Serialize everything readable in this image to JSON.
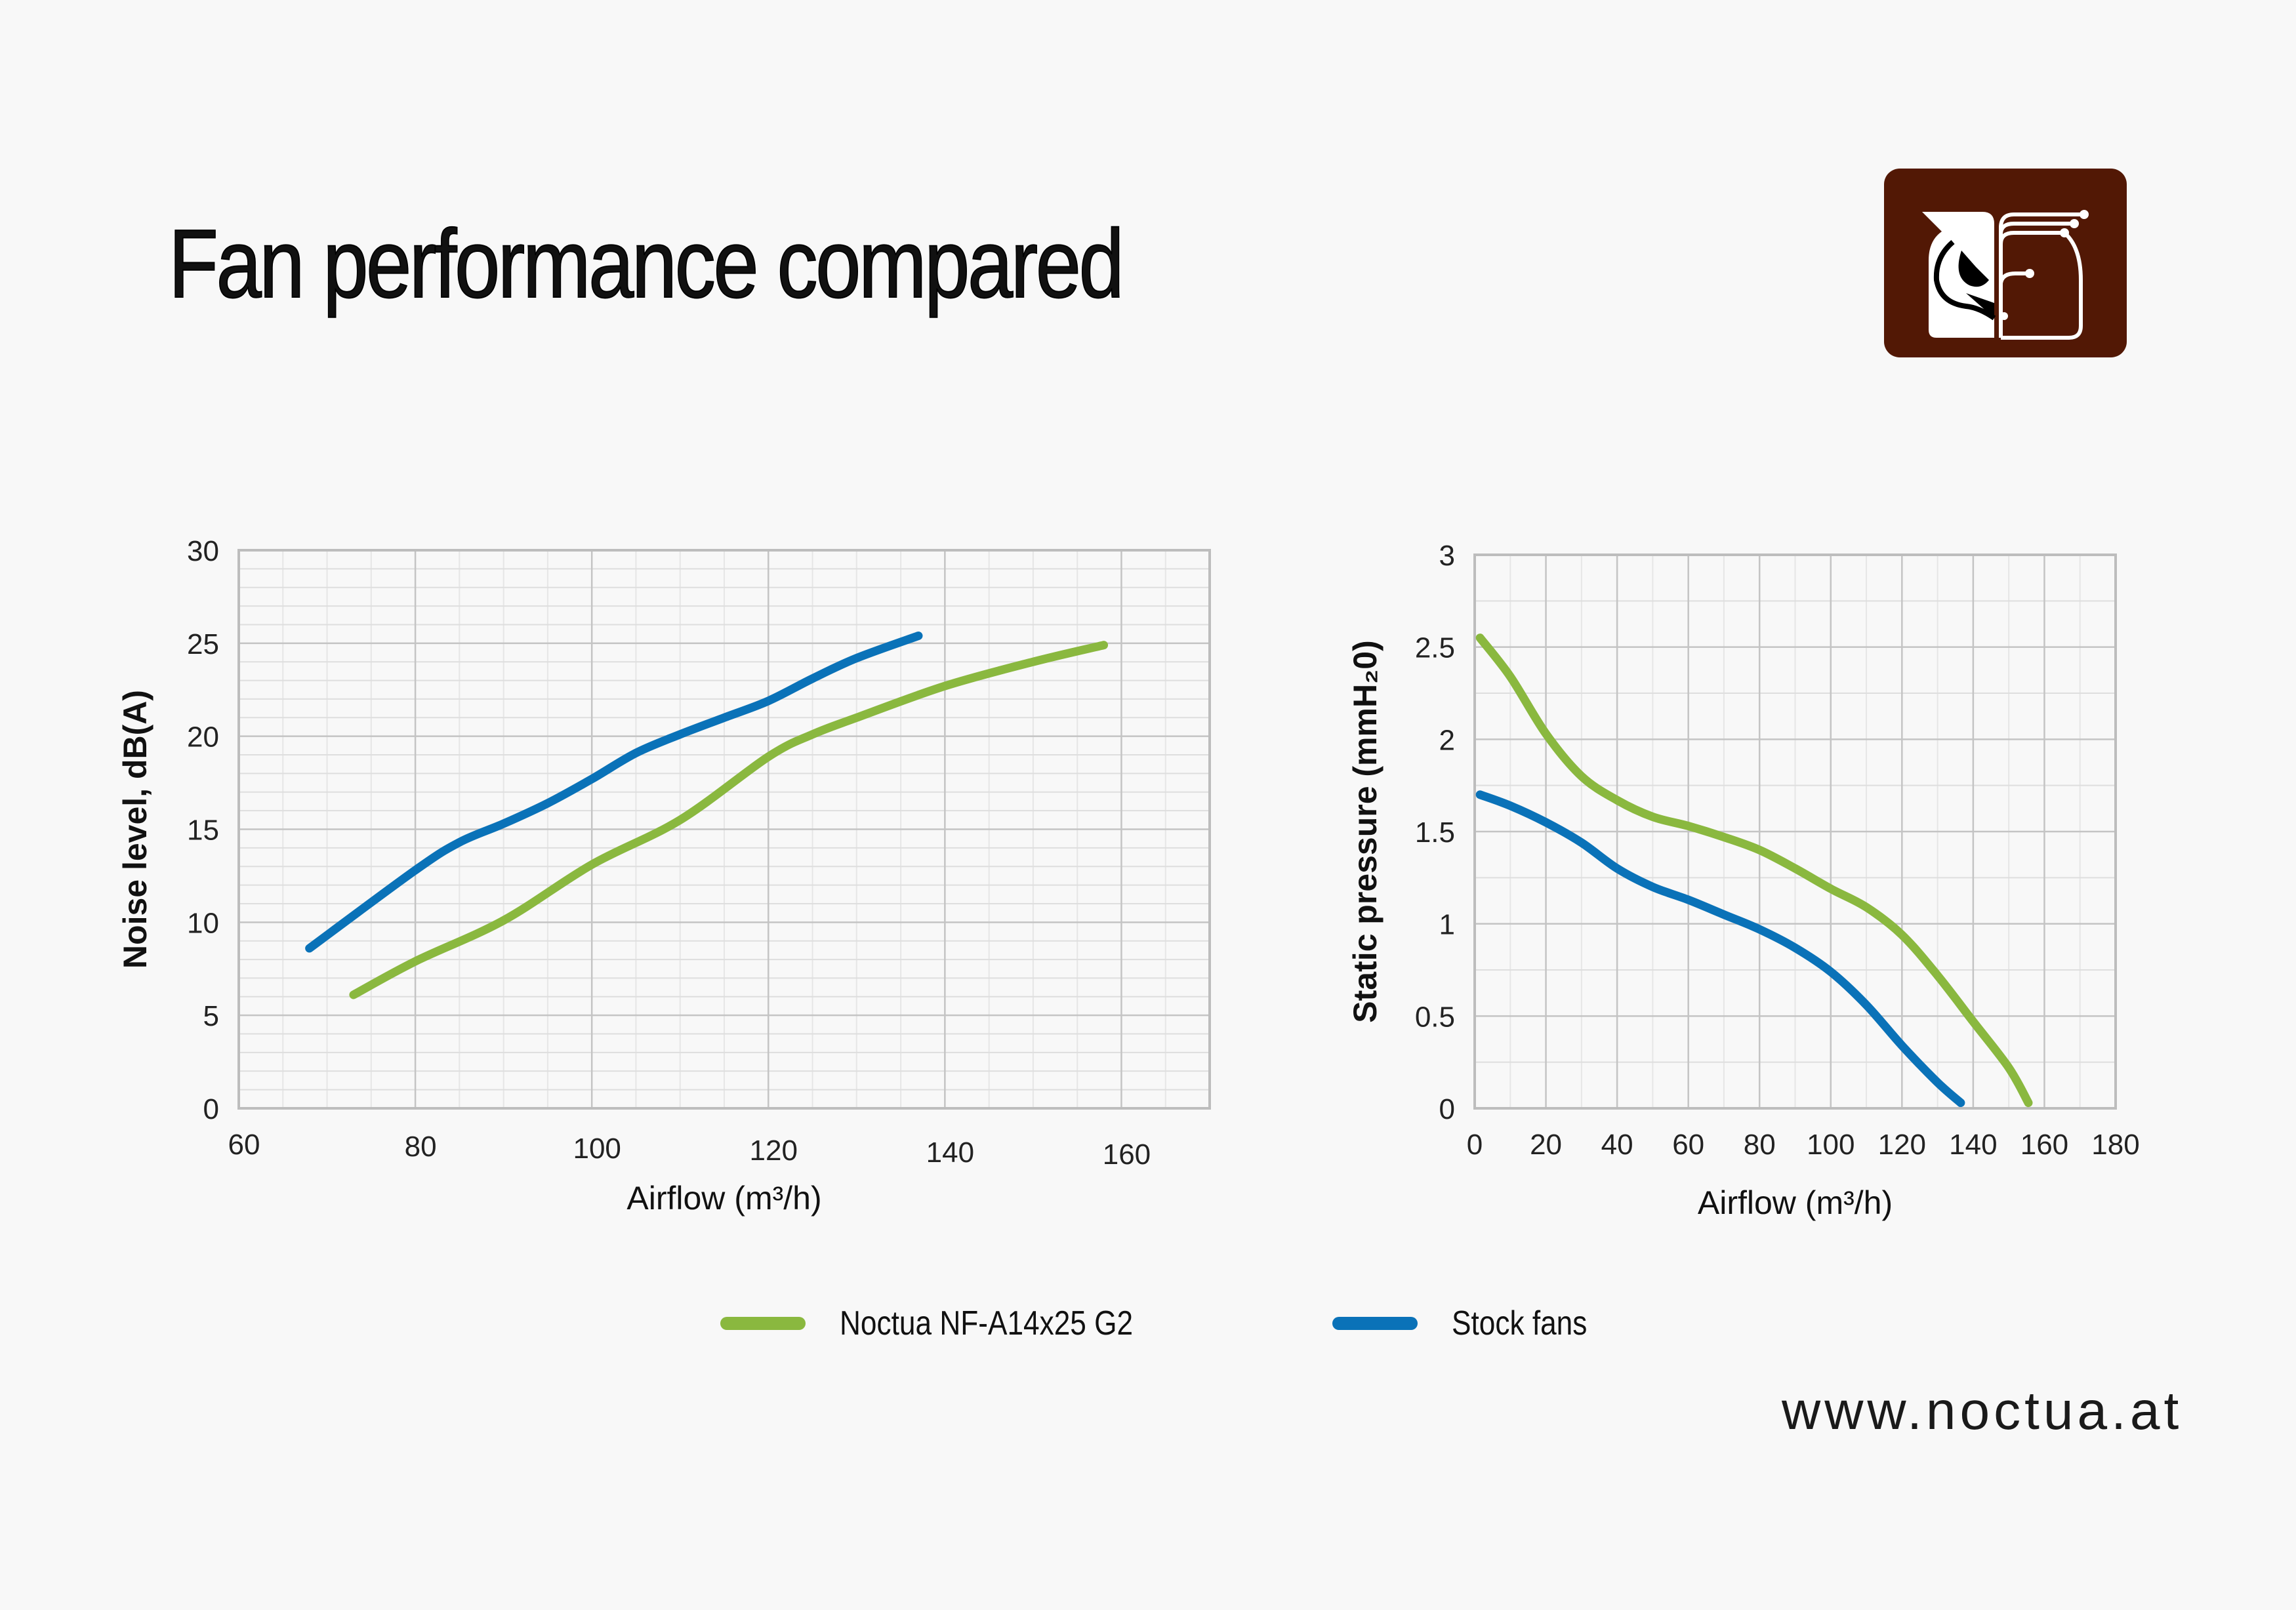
{
  "title": "Fan performance compared",
  "website": "www.noctua.at",
  "brand_color": "#521805",
  "legend": [
    {
      "name": "Noctua NF-A14x25 G2",
      "color": "#8ab83f"
    },
    {
      "name": "Stock fans",
      "color": "#0a72b8"
    }
  ],
  "chart_data": [
    {
      "type": "line",
      "xlabel": "Airflow (m³/h)",
      "ylabel": "Noise level, dB(A)",
      "xlim": [
        60,
        170
      ],
      "ylim": [
        0,
        30
      ],
      "xticks": [
        60,
        80,
        100,
        120,
        140,
        160
      ],
      "yticks": [
        0,
        5,
        10,
        15,
        20,
        25,
        30
      ],
      "grid": true,
      "series": [
        {
          "name": "Noctua NF-A14x25 G2",
          "color": "#8ab83f",
          "x": [
            73,
            80,
            90,
            100,
            110,
            120,
            125,
            130,
            140,
            150,
            158
          ],
          "y": [
            6.1,
            7.9,
            10.1,
            13.1,
            15.5,
            18.9,
            20.1,
            21.0,
            22.7,
            24.0,
            24.9
          ]
        },
        {
          "name": "Stock fans",
          "color": "#0a72b8",
          "x": [
            68,
            80,
            85,
            90,
            95,
            100,
            105,
            110,
            115,
            120,
            125,
            130,
            137
          ],
          "y": [
            8.6,
            12.8,
            14.3,
            15.3,
            16.4,
            17.7,
            19.1,
            20.1,
            21.0,
            21.9,
            23.1,
            24.2,
            25.4
          ]
        }
      ]
    },
    {
      "type": "line",
      "xlabel": "Airflow (m³/h)",
      "ylabel": "Static pressure (mmH₂0)",
      "xlim": [
        0,
        180
      ],
      "ylim": [
        0,
        3
      ],
      "xticks": [
        0,
        20,
        40,
        60,
        80,
        100,
        120,
        140,
        160,
        180
      ],
      "yticks": [
        0,
        0.5,
        1,
        1.5,
        2,
        2.5,
        3
      ],
      "grid": true,
      "series": [
        {
          "name": "Noctua NF-A14x25 G2",
          "color": "#8ab83f",
          "x": [
            1.5,
            10,
            20,
            30,
            40,
            50,
            60,
            70,
            80,
            90,
            100,
            110,
            120,
            130,
            140,
            150,
            155.5
          ],
          "y": [
            2.55,
            2.34,
            2.03,
            1.8,
            1.67,
            1.58,
            1.53,
            1.47,
            1.4,
            1.3,
            1.19,
            1.09,
            0.94,
            0.72,
            0.47,
            0.22,
            0.03
          ]
        },
        {
          "name": "Stock fans",
          "color": "#0a72b8",
          "x": [
            1.5,
            10,
            20,
            30,
            40,
            50,
            60,
            70,
            80,
            90,
            100,
            110,
            120,
            130,
            136.5
          ],
          "y": [
            1.7,
            1.64,
            1.55,
            1.44,
            1.3,
            1.2,
            1.13,
            1.05,
            0.97,
            0.87,
            0.74,
            0.56,
            0.34,
            0.14,
            0.03
          ]
        }
      ]
    }
  ]
}
